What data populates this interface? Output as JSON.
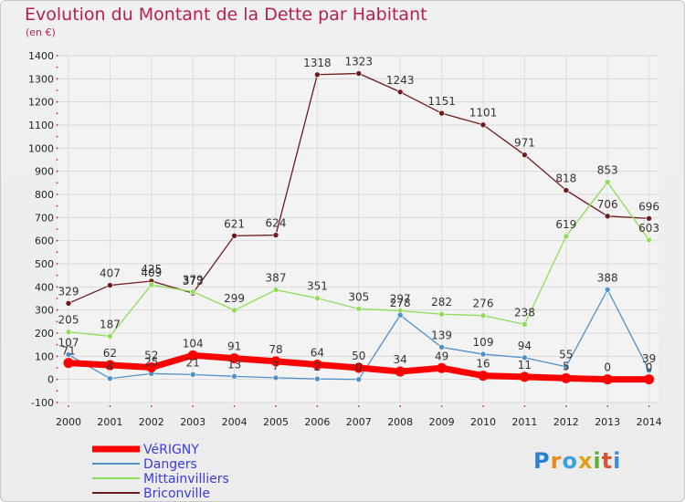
{
  "chart_data": {
    "type": "line",
    "title": "Evolution du Montant de la Dette par Habitant",
    "subtitle": "(en €)",
    "xlabel": "",
    "ylabel": "",
    "categories": [
      "2000",
      "2001",
      "2002",
      "2003",
      "2004",
      "2005",
      "2006",
      "2007",
      "2008",
      "2009",
      "2010",
      "2011",
      "2012",
      "2013",
      "2014"
    ],
    "ylim": [
      -100,
      1400
    ],
    "yticks": [
      -100,
      0,
      100,
      200,
      300,
      400,
      500,
      600,
      700,
      800,
      900,
      1000,
      1100,
      1200,
      1300,
      1400
    ],
    "grid": true,
    "legend_position": "bottom-left",
    "series": [
      {
        "name": "VéRIGNY",
        "color": "#ff0000",
        "values": [
          71,
          62,
          52,
          104,
          91,
          78,
          64,
          50,
          34,
          49,
          16,
          11,
          5,
          0,
          0
        ],
        "labels": [
          "71",
          "62",
          "52",
          "104",
          "91",
          "78",
          "64",
          "50",
          "34",
          "49",
          "16",
          "11",
          "5",
          "0",
          "0"
        ]
      },
      {
        "name": "Dangers",
        "color": "#4f90c8",
        "values": [
          107,
          4,
          25,
          21,
          13,
          7,
          2,
          0,
          278,
          139,
          109,
          94,
          55,
          388,
          39
        ],
        "labels": [
          "107",
          "4",
          "25",
          "21",
          "13",
          "7",
          "2",
          "0",
          "278",
          "139",
          "109",
          "94",
          "55",
          "388",
          "39"
        ]
      },
      {
        "name": "Mittainvilliers",
        "color": "#8fdc58",
        "values": [
          205,
          187,
          409,
          379,
          299,
          387,
          351,
          305,
          297,
          282,
          276,
          238,
          619,
          853,
          603
        ],
        "labels": [
          "205",
          "187",
          "409",
          "379",
          "299",
          "387",
          "351",
          "305",
          "297",
          "282",
          "276",
          "238",
          "619",
          "853",
          "603"
        ]
      },
      {
        "name": "Briconville",
        "color": "#6e1a1a",
        "values": [
          329,
          407,
          425,
          373,
          621,
          624,
          1318,
          1323,
          1243,
          1151,
          1101,
          971,
          818,
          706,
          696
        ],
        "labels": [
          "329",
          "407",
          "425",
          "373",
          "621",
          "624",
          "1318",
          "1323",
          "1243",
          "1151",
          "1101",
          "971",
          "818",
          "706",
          "696"
        ]
      }
    ]
  },
  "logo": {
    "letters": [
      "P",
      "r",
      "o",
      "x",
      "i",
      "t",
      "i"
    ],
    "colors": [
      "#2a7fd0",
      "#e88a1a",
      "#3aa0e0",
      "#e0a01a",
      "#60b030",
      "#e05030",
      "#3a90d8"
    ]
  }
}
